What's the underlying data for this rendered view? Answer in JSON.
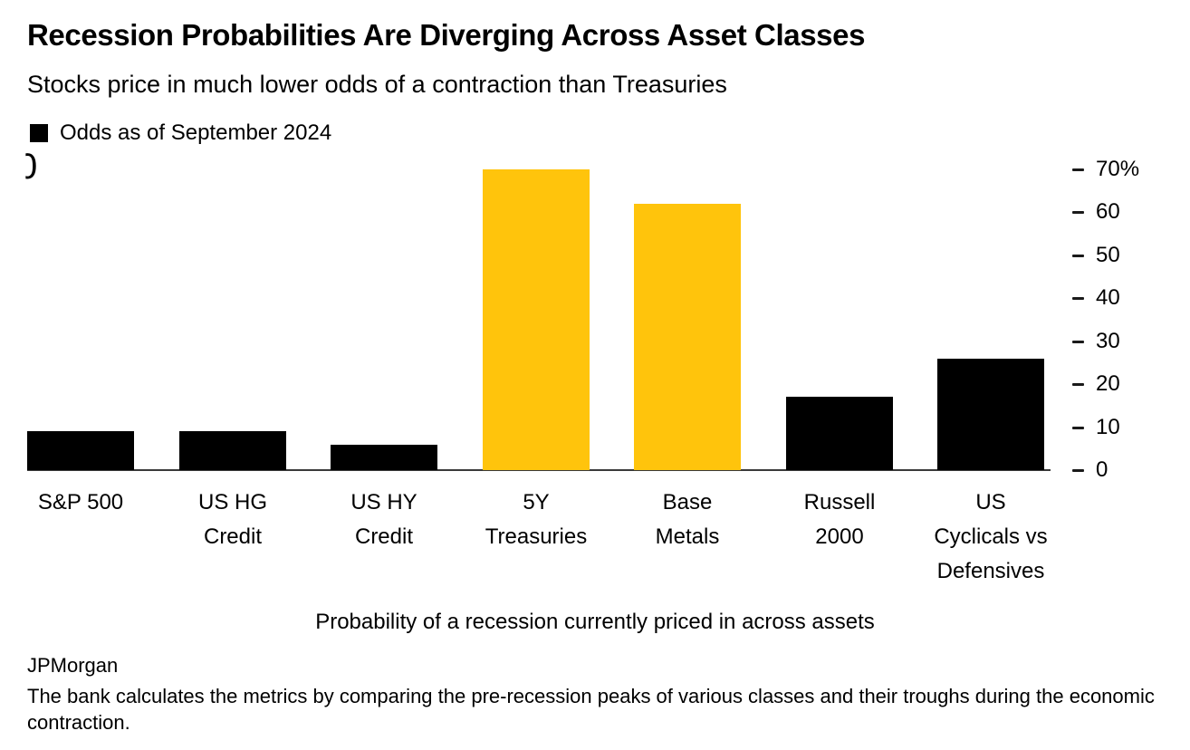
{
  "header": {
    "title": "Recession Probabilities Are Diverging Across Asset Classes",
    "subtitle": "Stocks price in much lower odds of a contraction than Treasuries"
  },
  "legend": {
    "label": "Odds as of September 2024",
    "swatch_color": "#000000"
  },
  "stray_axis_glyph": "0",
  "chart_data": {
    "type": "bar",
    "title": "Recession Probabilities Are Diverging Across Asset Classes",
    "subtitle": "Stocks price in much lower odds of a contraction than Treasuries",
    "series_name": "Odds as of September 2024",
    "categories": [
      "S&P 500",
      "US HG Credit",
      "US HY Credit",
      "5Y Treasuries",
      "Base Metals",
      "Russell 2000",
      "US Cyclicals vs Defensives"
    ],
    "category_label_lines": [
      [
        "S&P 500"
      ],
      [
        "US HG",
        "Credit"
      ],
      [
        "US HY",
        "Credit"
      ],
      [
        "5Y",
        "Treasuries"
      ],
      [
        "Base",
        "Metals"
      ],
      [
        "Russell",
        "2000"
      ],
      [
        "US",
        "Cyclicals vs",
        "Defensives"
      ]
    ],
    "values": [
      9,
      9,
      6,
      70,
      62,
      17,
      26
    ],
    "unit": "%",
    "bar_colors": [
      "#000000",
      "#000000",
      "#000000",
      "#FFC40C",
      "#FFC40C",
      "#000000",
      "#000000"
    ],
    "ylim": [
      0,
      70
    ],
    "yticks": [
      0,
      10,
      20,
      30,
      40,
      50,
      60,
      70
    ],
    "ytick_labels": [
      "0",
      "10",
      "20",
      "30",
      "40",
      "50",
      "60",
      "70%"
    ],
    "axis_side": "right",
    "grid": false,
    "legend_position": "top-left",
    "xlabel": "Probability of a recession currently priced in across assets",
    "ylabel": ""
  },
  "caption": "Probability of a recession currently priced in across assets",
  "source": "JPMorgan",
  "footnote": "The bank calculates the metrics by comparing the pre-recession peaks of various classes and their troughs during the economic contraction.",
  "colors": {
    "accent_yellow": "#FFC40C",
    "bar_black": "#000000",
    "axis_line": "#3a3a3a",
    "background": "#FFFFFF"
  }
}
